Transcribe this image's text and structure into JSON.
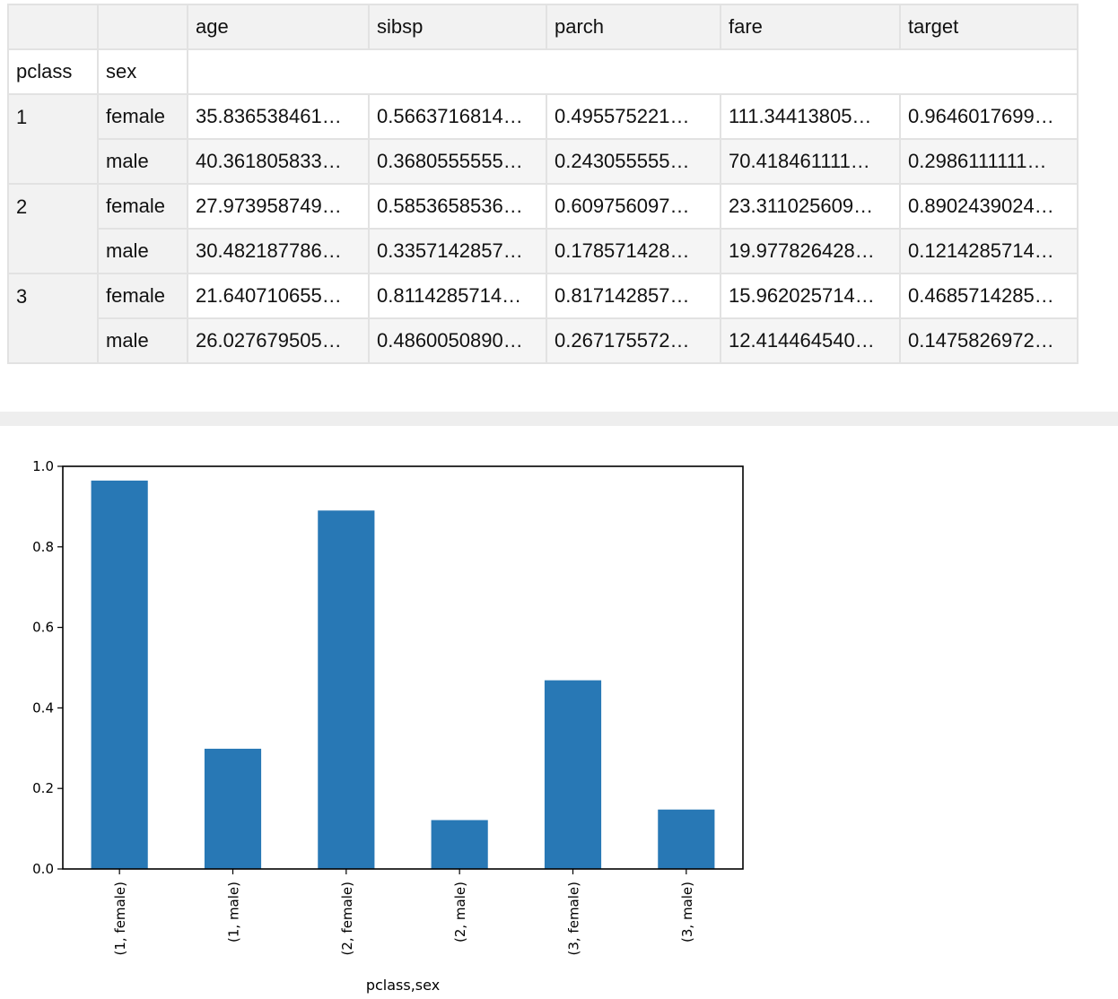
{
  "table": {
    "index_names": [
      "pclass",
      "sex"
    ],
    "columns": [
      "age",
      "sibsp",
      "parch",
      "fare",
      "target"
    ],
    "rows": [
      {
        "pclass": "1",
        "sex": "female",
        "values": [
          "35.836538461…",
          "0.5663716814…",
          "0.495575221…",
          "111.34413805…",
          "0.9646017699…"
        ]
      },
      {
        "pclass": "",
        "sex": "male",
        "values": [
          "40.361805833…",
          "0.3680555555…",
          "0.243055555…",
          "70.418461111…",
          "0.2986111111…"
        ]
      },
      {
        "pclass": "2",
        "sex": "female",
        "values": [
          "27.973958749…",
          "0.5853658536…",
          "0.609756097…",
          "23.311025609…",
          "0.8902439024…"
        ]
      },
      {
        "pclass": "",
        "sex": "male",
        "values": [
          "30.482187786…",
          "0.3357142857…",
          "0.178571428…",
          "19.977826428…",
          "0.1214285714…"
        ]
      },
      {
        "pclass": "3",
        "sex": "female",
        "values": [
          "21.640710655…",
          "0.8114285714…",
          "0.817142857…",
          "15.962025714…",
          "0.4685714285…"
        ]
      },
      {
        "pclass": "",
        "sex": "male",
        "values": [
          "26.027679505…",
          "0.4860050890…",
          "0.267175572…",
          "12.414464540…",
          "0.1475826972…"
        ]
      }
    ]
  },
  "chart_data": {
    "type": "bar",
    "title": "",
    "xlabel": "pclass,sex",
    "ylabel": "",
    "categories": [
      "(1, female)",
      "(1, male)",
      "(2, female)",
      "(2, male)",
      "(3, female)",
      "(3, male)"
    ],
    "values": [
      0.9646,
      0.2986,
      0.8902,
      0.1214,
      0.4686,
      0.1476
    ],
    "ylim": [
      0,
      1.0
    ],
    "yticks": [
      "0.0",
      "0.2",
      "0.4",
      "0.6",
      "0.8",
      "1.0"
    ],
    "bar_color": "#2878b5",
    "grid": false,
    "legend": "none"
  }
}
